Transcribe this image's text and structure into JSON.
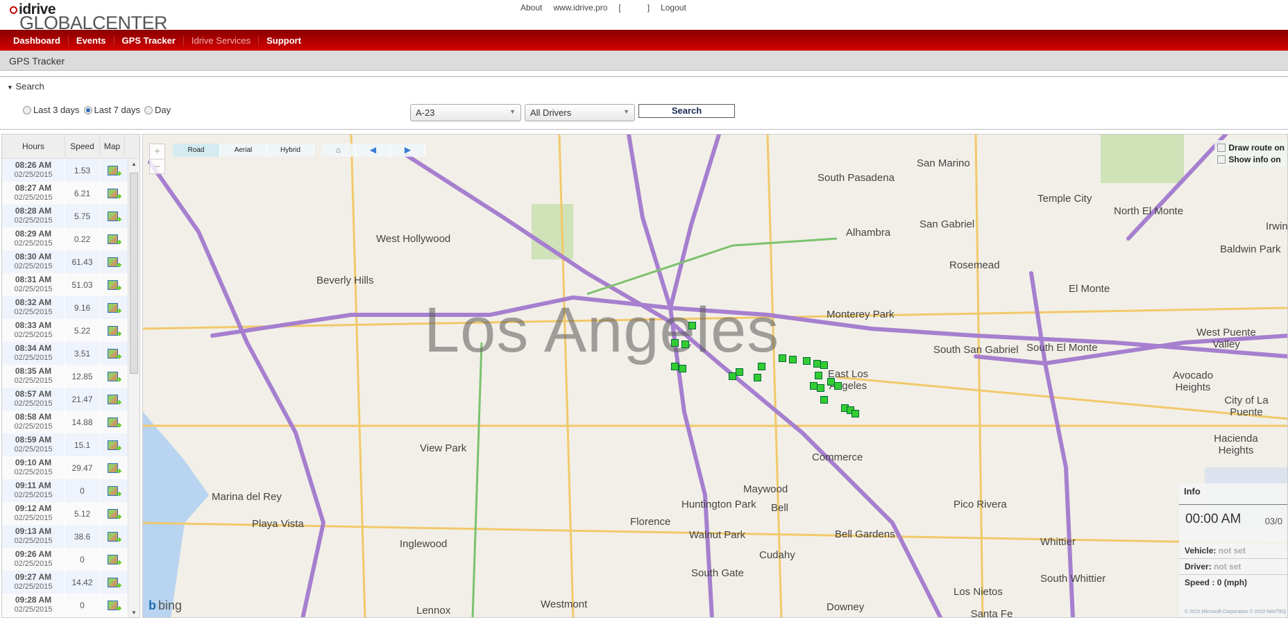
{
  "header": {
    "brand": "idrive",
    "brand_sub": "GLOBALCENTER",
    "links": {
      "about": "About",
      "site": "www.idrive.pro",
      "bracket_open": "[",
      "bracket_close": "]",
      "logout": "Logout"
    }
  },
  "nav": {
    "items": [
      {
        "label": "Dashboard"
      },
      {
        "label": "Events"
      },
      {
        "label": "GPS Tracker"
      },
      {
        "label": "Idrive Services"
      },
      {
        "label": "Support"
      }
    ]
  },
  "page_title": "GPS Tracker",
  "search": {
    "section_label": "Search",
    "ranges": [
      {
        "label": "Last 3 days",
        "selected": false
      },
      {
        "label": "Last 7 days",
        "selected": true
      },
      {
        "label": "Day",
        "selected": false
      }
    ],
    "vehicle": "A-23",
    "driver": "All Drivers",
    "button": "Search"
  },
  "grid": {
    "columns": [
      "Hours",
      "Speed",
      "Map"
    ],
    "rows": [
      {
        "time": "08:26 AM",
        "date": "02/25/2015",
        "speed": "1.53"
      },
      {
        "time": "08:27 AM",
        "date": "02/25/2015",
        "speed": "6.21"
      },
      {
        "time": "08:28 AM",
        "date": "02/25/2015",
        "speed": "5.75"
      },
      {
        "time": "08:29 AM",
        "date": "02/25/2015",
        "speed": "0.22"
      },
      {
        "time": "08:30 AM",
        "date": "02/25/2015",
        "speed": "61.43"
      },
      {
        "time": "08:31 AM",
        "date": "02/25/2015",
        "speed": "51.03"
      },
      {
        "time": "08:32 AM",
        "date": "02/25/2015",
        "speed": "9.16"
      },
      {
        "time": "08:33 AM",
        "date": "02/25/2015",
        "speed": "5.22"
      },
      {
        "time": "08:34 AM",
        "date": "02/25/2015",
        "speed": "3.51"
      },
      {
        "time": "08:35 AM",
        "date": "02/25/2015",
        "speed": "12.85"
      },
      {
        "time": "08:57 AM",
        "date": "02/25/2015",
        "speed": "21.47"
      },
      {
        "time": "08:58 AM",
        "date": "02/25/2015",
        "speed": "14.88"
      },
      {
        "time": "08:59 AM",
        "date": "02/25/2015",
        "speed": "15.1"
      },
      {
        "time": "09:10 AM",
        "date": "02/25/2015",
        "speed": "29.47"
      },
      {
        "time": "09:11 AM",
        "date": "02/25/2015",
        "speed": "0"
      },
      {
        "time": "09:12 AM",
        "date": "02/25/2015",
        "speed": "5.12"
      },
      {
        "time": "09:13 AM",
        "date": "02/25/2015",
        "speed": "38.6"
      },
      {
        "time": "09:26 AM",
        "date": "02/25/2015",
        "speed": "0"
      },
      {
        "time": "09:27 AM",
        "date": "02/25/2015",
        "speed": "14.42"
      },
      {
        "time": "09:28 AM",
        "date": "02/25/2015",
        "speed": "0"
      }
    ]
  },
  "map": {
    "types": [
      "Road",
      "Aerial",
      "Hybrid"
    ],
    "active_type": "Road",
    "options": [
      "Draw route on",
      "Show info on"
    ],
    "city_label": "Los Angeles",
    "places": [
      "West Hollywood",
      "Beverly Hills",
      "South Pasadena",
      "San Marino",
      "Temple City",
      "North El Monte",
      "Alhambra",
      "San Gabriel",
      "Rosemead",
      "Baldwin Park",
      "Irwindale",
      "El Monte",
      "Monterey Park",
      "South San Gabriel",
      "South El Monte",
      "West Puente Valley",
      "Avocado Heights",
      "East Los Angeles",
      "View Park",
      "Commerce",
      "Maywood",
      "Huntington Park",
      "Bell",
      "Florence",
      "Walnut Park",
      "Pico Rivera",
      "Whittier",
      "Hacienda Heights",
      "Bell Gardens",
      "Cudahy",
      "South Gate",
      "South Whittier",
      "Los Nietos",
      "Santa Fe Springs",
      "Downey",
      "Westmont",
      "Lennox",
      "Inglewood",
      "Playa Vista",
      "Marina del Rey",
      "City of La Puente"
    ],
    "bing": "bing",
    "copyright": "© 2015 Microsoft Corporation   © 2010 NAVTEQ",
    "marker_color": "#33cc33"
  },
  "info": {
    "title": "Info",
    "time": "00:00 AM",
    "date": "03/0",
    "vehicle_label": "Vehicle:",
    "vehicle": "not set",
    "driver_label": "Driver:",
    "driver": "not set",
    "speed_label": "Speed :",
    "speed": "0",
    "speed_unit": "(mph)"
  }
}
